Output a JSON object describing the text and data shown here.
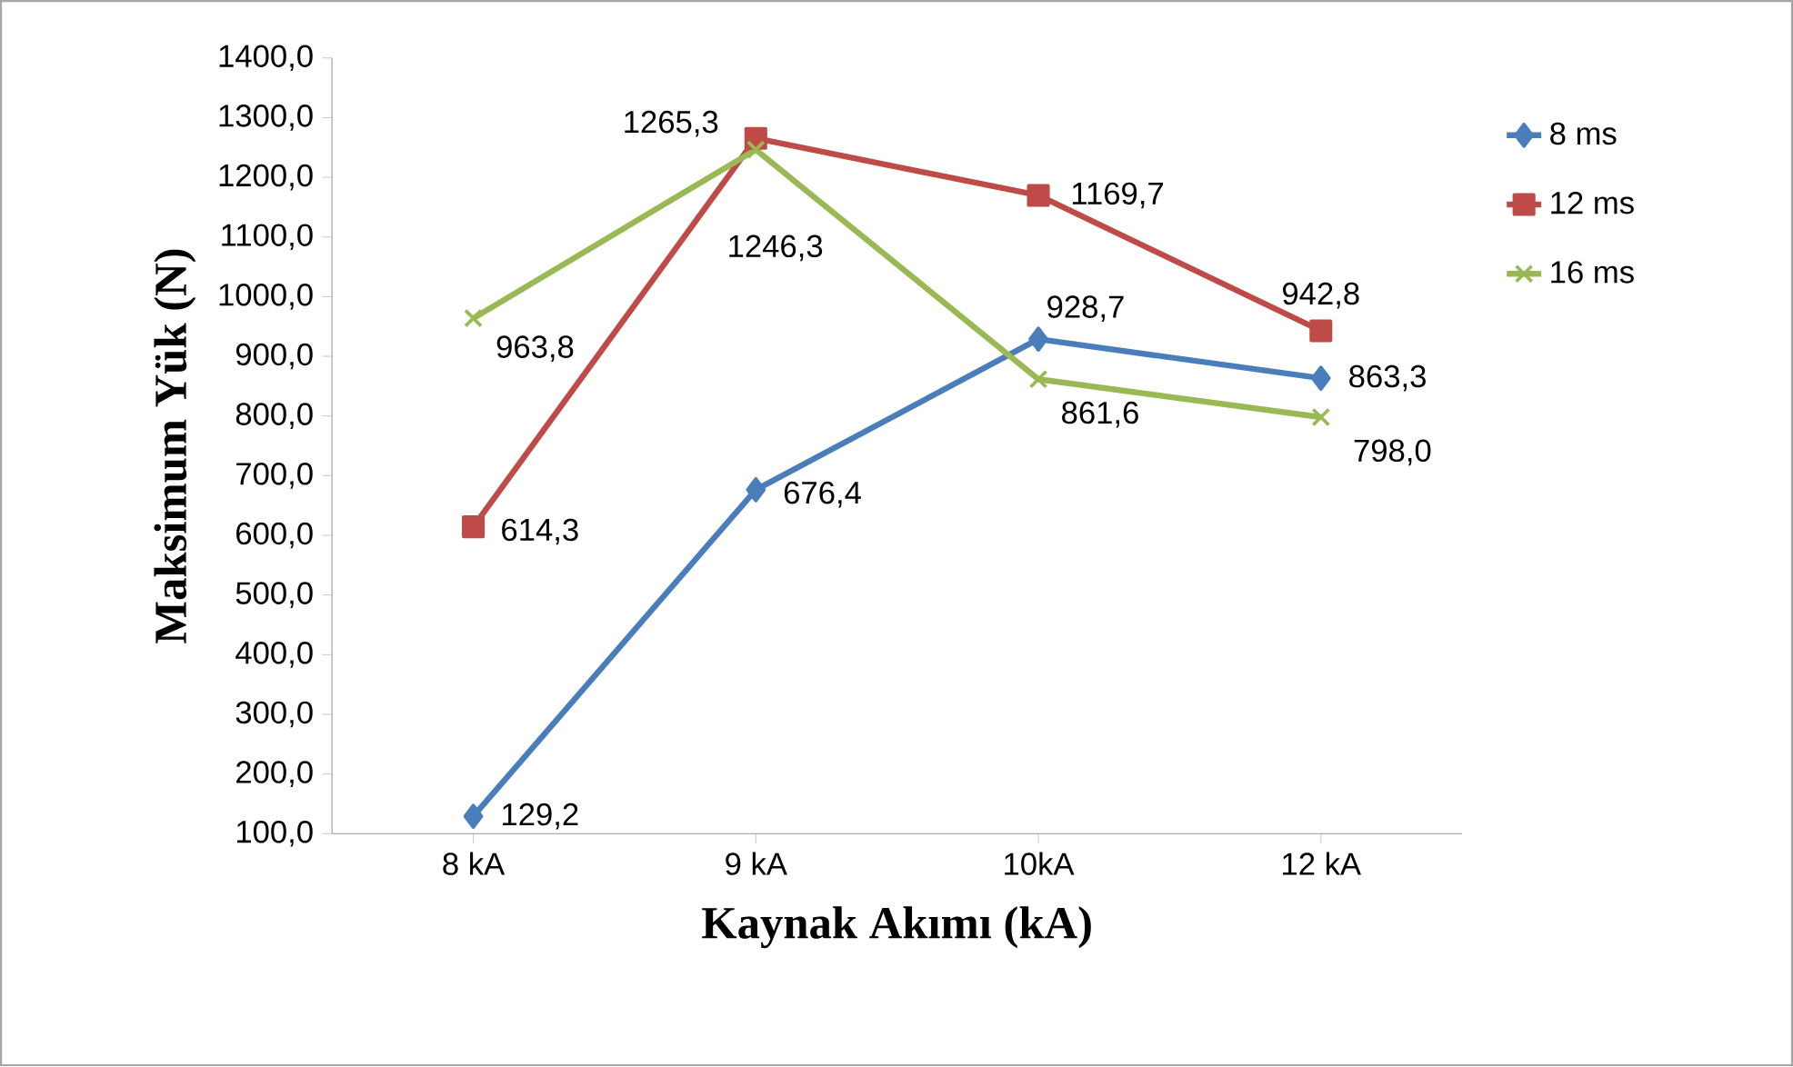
{
  "chart_data": {
    "type": "line",
    "xlabel": "Kaynak Akımı (kA)",
    "ylabel": "Maksimum Yük (N)",
    "categories": [
      "8 kA",
      "9 kA",
      "10kA",
      "12 kA"
    ],
    "series": [
      {
        "name": "8 ms",
        "color": "#4a7ebb",
        "marker": "diamond",
        "values": [
          129.2,
          676.4,
          928.7,
          863.3
        ],
        "value_labels": [
          "129,2",
          "676,4",
          "928,7",
          "863,3"
        ]
      },
      {
        "name": "12 ms",
        "color": "#be4b48",
        "marker": "square",
        "values": [
          614.3,
          1265.3,
          1169.7,
          942.8
        ],
        "value_labels": [
          "614,3",
          "1265,3",
          "1169,7",
          "942,8"
        ]
      },
      {
        "name": "16 ms",
        "color": "#98b954",
        "marker": "cross",
        "values": [
          963.8,
          1246.3,
          861.6,
          798.0
        ],
        "value_labels": [
          "963,8",
          "1246,3",
          "861,6",
          "798,0"
        ]
      }
    ],
    "ylim": [
      100,
      1400
    ],
    "yticks": [
      {
        "value": 100,
        "label": "100,0"
      },
      {
        "value": 200,
        "label": "200,0"
      },
      {
        "value": 300,
        "label": "300,0"
      },
      {
        "value": 400,
        "label": "400,0"
      },
      {
        "value": 500,
        "label": "500,0"
      },
      {
        "value": 600,
        "label": "600,0"
      },
      {
        "value": 700,
        "label": "700,0"
      },
      {
        "value": 800,
        "label": "800,0"
      },
      {
        "value": 900,
        "label": "900,0"
      },
      {
        "value": 1000,
        "label": "1000,0"
      },
      {
        "value": 1100,
        "label": "1100,0"
      },
      {
        "value": 1200,
        "label": "1200,0"
      },
      {
        "value": 1300,
        "label": "1300,0"
      },
      {
        "value": 1400,
        "label": "1400,0"
      }
    ],
    "grid": false,
    "legend": "right",
    "line_style": "solid"
  }
}
